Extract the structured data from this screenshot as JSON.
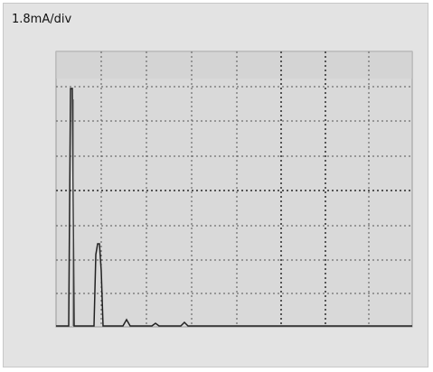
{
  "panel": {
    "scale_label": "1.8mA/div"
  }
}
